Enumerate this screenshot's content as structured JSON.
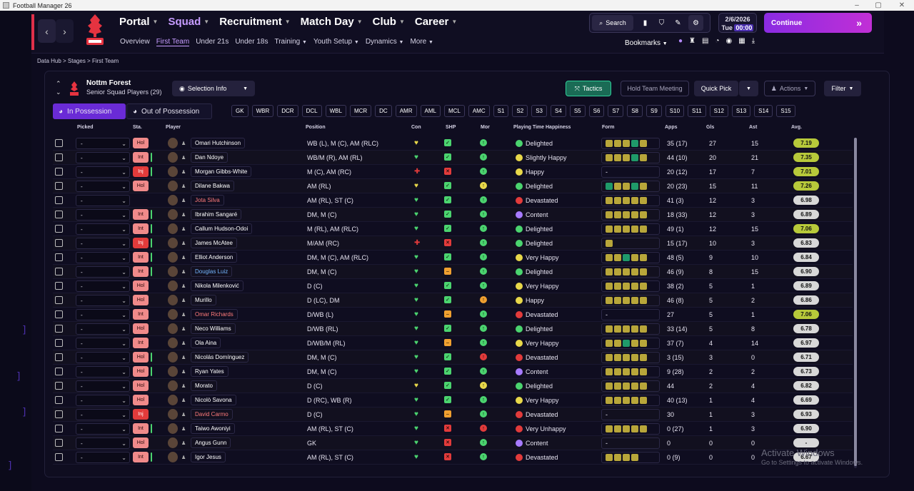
{
  "window": {
    "title": "Football Manager 26"
  },
  "nav": {
    "top": [
      "Portal",
      "Squad",
      "Recruitment",
      "Match Day",
      "Club",
      "Career"
    ],
    "sub": [
      "Overview",
      "First Team",
      "Under 21s",
      "Under 18s",
      "Training",
      "Youth Setup",
      "Dynamics",
      "More"
    ],
    "search_label": "Search",
    "date": "2/6/2026",
    "day": "Tue",
    "time": "00:00",
    "continue_label": "Continue",
    "bookmarks_label": "Bookmarks"
  },
  "breadcrumb": [
    "Data Hub",
    "Stages",
    "First Team"
  ],
  "club": {
    "name": "Nottm Forest",
    "subtitle": "Senior Squad Players (29)"
  },
  "toolbar": {
    "selection_info": "Selection Info",
    "tactics": "Tactics",
    "hold_meeting": "Hold Team Meeting",
    "quick_pick": "Quick Pick",
    "actions": "Actions",
    "filter": "Filter",
    "in_possession": "In Possession",
    "out_possession": "Out of Possession"
  },
  "positions": [
    "GK",
    "WBR",
    "DCR",
    "DCL",
    "WBL",
    "MCR",
    "DC",
    "AMR",
    "AML",
    "MCL",
    "AMC",
    "S1",
    "S2",
    "S3",
    "S4",
    "S5",
    "S6",
    "S7",
    "S8",
    "S9",
    "S10",
    "S11",
    "S12",
    "S13",
    "S14",
    "S15"
  ],
  "columns": {
    "picked": "Picked",
    "sta": "Sta.",
    "player": "Player",
    "position": "Position",
    "con": "Con",
    "shp": "SHP",
    "mor": "Mor",
    "pth": "Playing Time Happiness",
    "form": "Form",
    "apps": "Apps",
    "gls": "Gls",
    "ast": "Ast",
    "avg": "Avg."
  },
  "colors": {
    "accent": "#c69cff",
    "green": "#4bd46f",
    "red": "#e23b3b",
    "orange": "#f0a030",
    "yellow": "#e8d84a"
  },
  "players": [
    {
      "pick": "-",
      "sta": "Hol",
      "name": "Omari Hutchinson",
      "style": "",
      "pos": "WB (L), M (C), AM (RLC)",
      "con": "y",
      "shp": "g",
      "mor": "g",
      "hap": "Delighted",
      "face": "g",
      "form": [
        "o",
        "o",
        "o",
        "g",
        "o"
      ],
      "apps": "35 (17)",
      "gls": "27",
      "ast": "15",
      "avg": "7.19",
      "avgc": "#b7c93a",
      "mark": ""
    },
    {
      "pick": "-",
      "sta": "Int",
      "name": "Dan Ndoye",
      "style": "",
      "pos": "WB/M (R), AM (RL)",
      "con": "g",
      "shp": "g",
      "mor": "g",
      "hap": "Slightly Happy",
      "face": "y",
      "form": [
        "o",
        "o",
        "o",
        "g",
        "o"
      ],
      "apps": "44 (10)",
      "gls": "20",
      "ast": "21",
      "avg": "7.35",
      "avgc": "#b7c93a",
      "mark": "g"
    },
    {
      "pick": "-",
      "sta": "Inj",
      "name": "Morgan Gibbs-White",
      "style": "",
      "pos": "M (C), AM (RC)",
      "con": "r",
      "shp": "r",
      "mor": "g",
      "hap": "Happy",
      "face": "y",
      "form": [],
      "apps": "20 (12)",
      "gls": "17",
      "ast": "7",
      "avg": "7.01",
      "avgc": "#b7c93a",
      "mark": "g"
    },
    {
      "pick": "-",
      "sta": "Hol",
      "name": "Dilane Bakwa",
      "style": "",
      "pos": "AM (RL)",
      "con": "y",
      "shp": "g",
      "mor": "y",
      "hap": "Delighted",
      "face": "g",
      "form": [
        "g",
        "o",
        "o",
        "g",
        "o"
      ],
      "apps": "20 (23)",
      "gls": "15",
      "ast": "11",
      "avg": "7.26",
      "avgc": "#b7c93a",
      "mark": ""
    },
    {
      "pick": "-",
      "sta": "",
      "name": "Jota Silva",
      "style": "red",
      "pos": "AM (RL), ST (C)",
      "con": "g",
      "shp": "g",
      "mor": "g",
      "hap": "Devastated",
      "face": "r",
      "form": [
        "o",
        "o",
        "o",
        "o",
        "o"
      ],
      "apps": "41 (3)",
      "gls": "12",
      "ast": "3",
      "avg": "6.98",
      "avgc": "#d8d8d8",
      "mark": ""
    },
    {
      "pick": "-",
      "sta": "Int",
      "name": "Ibrahim Sangaré",
      "style": "",
      "pos": "DM, M (C)",
      "con": "g",
      "shp": "g",
      "mor": "g",
      "hap": "Content",
      "face": "p",
      "form": [
        "o",
        "o",
        "o",
        "o",
        "o"
      ],
      "apps": "18 (33)",
      "gls": "12",
      "ast": "3",
      "avg": "6.89",
      "avgc": "#d8d8d8",
      "mark": "g"
    },
    {
      "pick": "-",
      "sta": "Int",
      "name": "Callum Hudson-Odoi",
      "style": "",
      "pos": "M (RL), AM (RLC)",
      "con": "g",
      "shp": "g",
      "mor": "g",
      "hap": "Delighted",
      "face": "g",
      "form": [
        "o",
        "o",
        "o",
        "o",
        "o"
      ],
      "apps": "49 (1)",
      "gls": "12",
      "ast": "15",
      "avg": "7.06",
      "avgc": "#b7c93a",
      "mark": "g"
    },
    {
      "pick": "-",
      "sta": "Inj",
      "name": "James McAtee",
      "style": "",
      "pos": "M/AM (RC)",
      "con": "r",
      "shp": "r",
      "mor": "g",
      "hap": "Delighted",
      "face": "g",
      "form": [
        "o"
      ],
      "apps": "15 (17)",
      "gls": "10",
      "ast": "3",
      "avg": "6.83",
      "avgc": "#d8d8d8",
      "mark": "g"
    },
    {
      "pick": "-",
      "sta": "Int",
      "name": "Elliot Anderson",
      "style": "",
      "pos": "DM, M (C), AM (RLC)",
      "con": "g",
      "shp": "g",
      "mor": "g",
      "hap": "Very Happy",
      "face": "y",
      "form": [
        "o",
        "o",
        "g",
        "o",
        "o"
      ],
      "apps": "48 (5)",
      "gls": "9",
      "ast": "10",
      "avg": "6.84",
      "avgc": "#d8d8d8",
      "mark": "g"
    },
    {
      "pick": "-",
      "sta": "Int",
      "name": "Douglas Luiz",
      "style": "blue",
      "pos": "DM, M (C)",
      "con": "g",
      "shp": "o",
      "mor": "g",
      "hap": "Delighted",
      "face": "g",
      "form": [
        "o",
        "o",
        "o",
        "o",
        "o"
      ],
      "apps": "46 (9)",
      "gls": "8",
      "ast": "15",
      "avg": "6.90",
      "avgc": "#d8d8d8",
      "mark": "g"
    },
    {
      "pick": "-",
      "sta": "Hol",
      "name": "Nikola Milenković",
      "style": "",
      "pos": "D (C)",
      "con": "g",
      "shp": "g",
      "mor": "g",
      "hap": "Very Happy",
      "face": "y",
      "form": [
        "o",
        "o",
        "o",
        "o",
        "o"
      ],
      "apps": "38 (2)",
      "gls": "5",
      "ast": "1",
      "avg": "6.89",
      "avgc": "#d8d8d8",
      "mark": ""
    },
    {
      "pick": "-",
      "sta": "Hol",
      "name": "Murillo",
      "style": "",
      "pos": "D (LC), DM",
      "con": "g",
      "shp": "g",
      "mor": "o",
      "hap": "Happy",
      "face": "y",
      "form": [
        "o",
        "o",
        "o",
        "o",
        "o"
      ],
      "apps": "46 (8)",
      "gls": "5",
      "ast": "2",
      "avg": "6.86",
      "avgc": "#d8d8d8",
      "mark": ""
    },
    {
      "pick": "-",
      "sta": "Int",
      "name": "Omar Richards",
      "style": "red",
      "pos": "D/WB (L)",
      "con": "g",
      "shp": "o",
      "mor": "g",
      "hap": "Devastated",
      "face": "r",
      "form": [],
      "apps": "27",
      "gls": "5",
      "ast": "1",
      "avg": "7.06",
      "avgc": "#b7c93a",
      "mark": ""
    },
    {
      "pick": "-",
      "sta": "Hol",
      "name": "Neco Williams",
      "style": "",
      "pos": "D/WB (RL)",
      "con": "g",
      "shp": "g",
      "mor": "g",
      "hap": "Delighted",
      "face": "g",
      "form": [
        "o",
        "o",
        "o",
        "o",
        "o"
      ],
      "apps": "33 (14)",
      "gls": "5",
      "ast": "8",
      "avg": "6.78",
      "avgc": "#d8d8d8",
      "mark": ""
    },
    {
      "pick": "-",
      "sta": "Int",
      "name": "Ola Aina",
      "style": "",
      "pos": "D/WB/M (RL)",
      "con": "g",
      "shp": "o",
      "mor": "g",
      "hap": "Very Happy",
      "face": "y",
      "form": [
        "o",
        "o",
        "g",
        "o",
        "o"
      ],
      "apps": "37 (7)",
      "gls": "4",
      "ast": "14",
      "avg": "6.97",
      "avgc": "#d8d8d8",
      "mark": ""
    },
    {
      "pick": "-",
      "sta": "Hol",
      "name": "Nicolás Domínguez",
      "style": "",
      "pos": "DM, M (C)",
      "con": "g",
      "shp": "g",
      "mor": "r",
      "hap": "Devastated",
      "face": "r",
      "form": [
        "o",
        "o",
        "o",
        "o",
        "o"
      ],
      "apps": "3 (15)",
      "gls": "3",
      "ast": "0",
      "avg": "6.71",
      "avgc": "#d8d8d8",
      "mark": "g"
    },
    {
      "pick": "-",
      "sta": "Hol",
      "name": "Ryan Yates",
      "style": "",
      "pos": "DM, M (C)",
      "con": "g",
      "shp": "g",
      "mor": "g",
      "hap": "Content",
      "face": "p",
      "form": [
        "o",
        "o",
        "o",
        "o",
        "o"
      ],
      "apps": "9 (28)",
      "gls": "2",
      "ast": "2",
      "avg": "6.73",
      "avgc": "#d8d8d8",
      "mark": "g"
    },
    {
      "pick": "-",
      "sta": "Hol",
      "name": "Morato",
      "style": "",
      "pos": "D (C)",
      "con": "y",
      "shp": "g",
      "mor": "y",
      "hap": "Delighted",
      "face": "g",
      "form": [
        "o",
        "o",
        "o",
        "o",
        "o"
      ],
      "apps": "44",
      "gls": "2",
      "ast": "4",
      "avg": "6.82",
      "avgc": "#d8d8d8",
      "mark": ""
    },
    {
      "pick": "-",
      "sta": "Hol",
      "name": "Nicolò Savona",
      "style": "",
      "pos": "D (RC), WB (R)",
      "con": "g",
      "shp": "g",
      "mor": "g",
      "hap": "Very Happy",
      "face": "y",
      "form": [
        "o",
        "o",
        "o",
        "o",
        "o"
      ],
      "apps": "40 (13)",
      "gls": "1",
      "ast": "4",
      "avg": "6.69",
      "avgc": "#d8d8d8",
      "mark": ""
    },
    {
      "pick": "-",
      "sta": "Inj",
      "name": "David Carmo",
      "style": "red",
      "pos": "D (C)",
      "con": "g",
      "shp": "o",
      "mor": "g",
      "hap": "Devastated",
      "face": "r",
      "form": [],
      "apps": "30",
      "gls": "1",
      "ast": "3",
      "avg": "6.93",
      "avgc": "#d8d8d8",
      "mark": ""
    },
    {
      "pick": "-",
      "sta": "Int",
      "name": "Taiwo Awoniyi",
      "style": "",
      "pos": "AM (RL), ST (C)",
      "con": "g",
      "shp": "r",
      "mor": "r",
      "hap": "Very Unhappy",
      "face": "r",
      "form": [
        "o",
        "o",
        "o",
        "o",
        "o"
      ],
      "apps": "0 (27)",
      "gls": "1",
      "ast": "3",
      "avg": "6.90",
      "avgc": "#d8d8d8",
      "mark": "g"
    },
    {
      "pick": "-",
      "sta": "Hol",
      "name": "Angus Gunn",
      "style": "",
      "pos": "GK",
      "con": "g",
      "shp": "r",
      "mor": "g",
      "hap": "Content",
      "face": "p",
      "form": [],
      "apps": "0",
      "gls": "0",
      "ast": "0",
      "avg": "-",
      "avgc": "#d8d8d8",
      "mark": ""
    },
    {
      "pick": "-",
      "sta": "Int",
      "name": "Igor Jesus",
      "style": "",
      "pos": "AM (RL), ST (C)",
      "con": "g",
      "shp": "r",
      "mor": "g",
      "hap": "Devastated",
      "face": "r",
      "form": [
        "o",
        "o",
        "o",
        "o"
      ],
      "apps": "0 (9)",
      "gls": "0",
      "ast": "0",
      "avg": "6.67",
      "avgc": "#d8d8d8",
      "mark": "g"
    }
  ],
  "watermark": {
    "title": "Activate Windows",
    "subtitle": "Go to Settings to activate Windows."
  }
}
